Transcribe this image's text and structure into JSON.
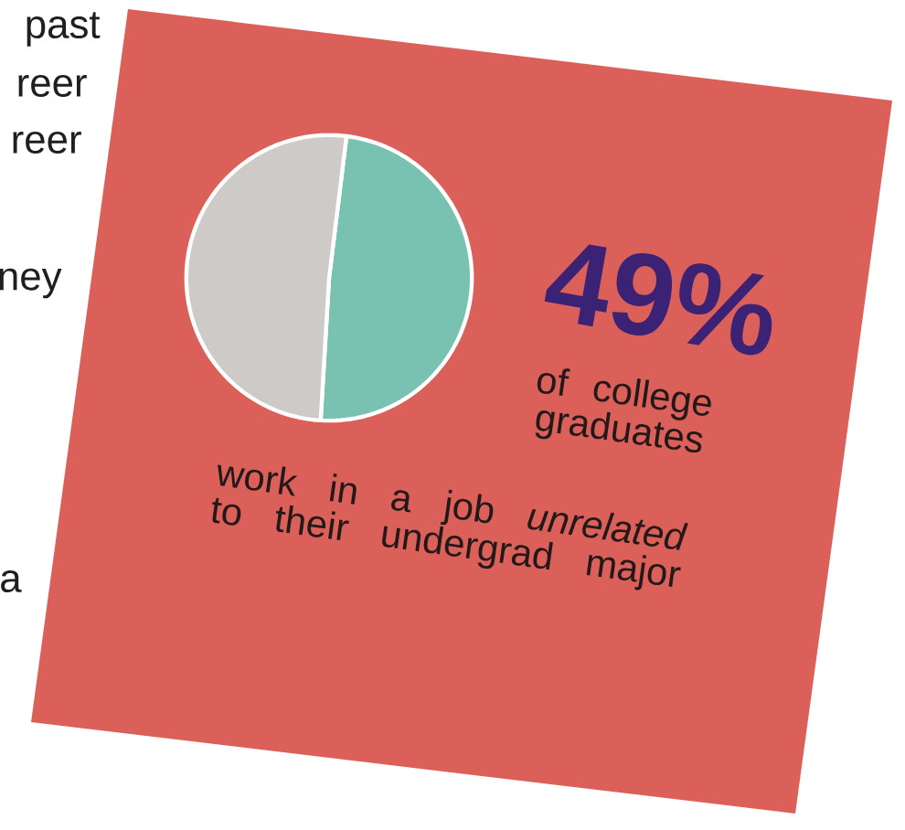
{
  "chart_data": {
    "type": "pie",
    "categories": [
      null,
      null
    ],
    "values": [
      49,
      51
    ],
    "colors": [
      "#79c2b2",
      "#cdcac7"
    ],
    "annotations": [
      "49%",
      "of college graduates",
      "work in a job *unrelated* to their undergrad major",
      "past",
      "reer",
      "reer",
      "ney",
      "a"
    ]
  }
}
